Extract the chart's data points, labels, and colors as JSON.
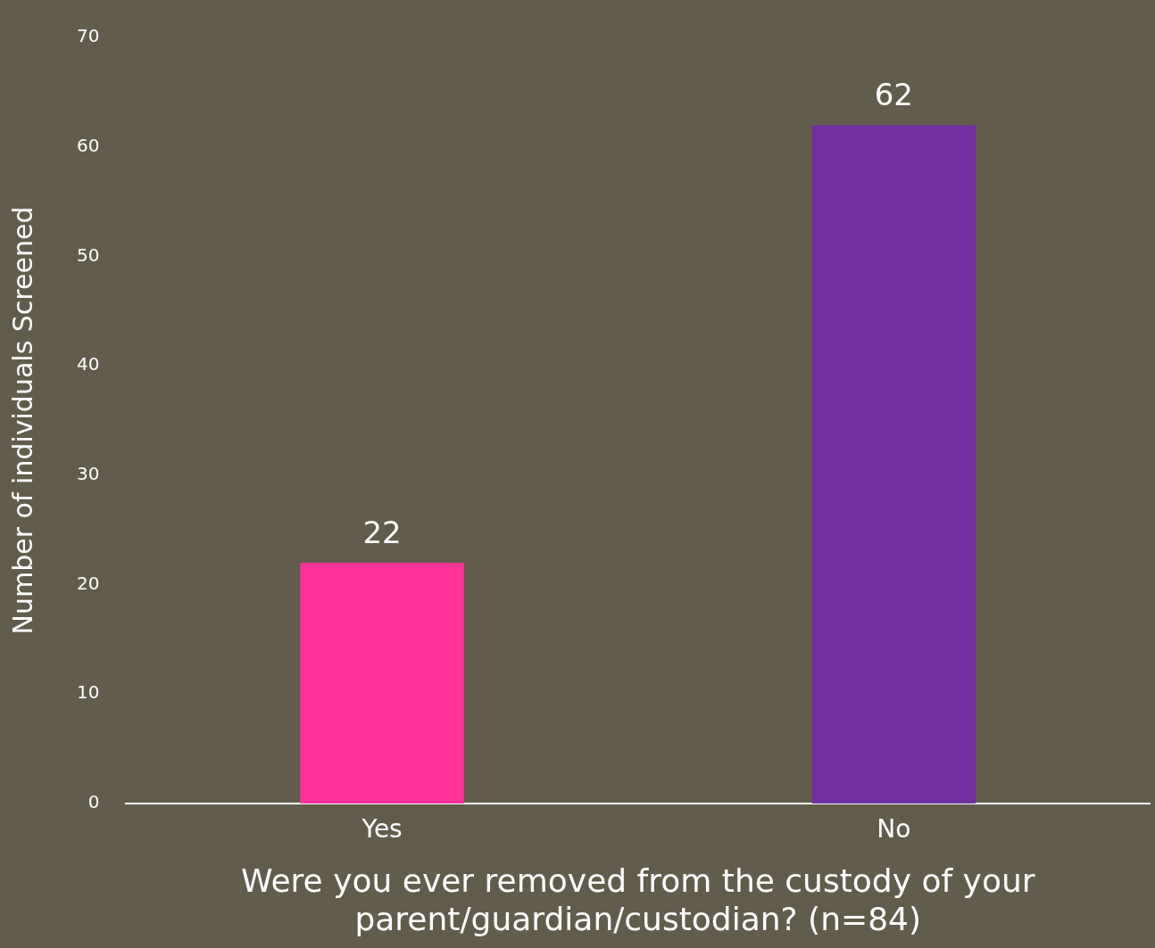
{
  "chart_data": {
    "type": "bar",
    "xlabel": "Were you ever removed from the custody of your parent/guardian/custodian? (n=84)",
    "ylabel": "Number of individuals Screened",
    "categories": [
      "Yes",
      "No"
    ],
    "values": [
      22,
      62
    ],
    "colors": [
      "#ff3399",
      "#7030a0"
    ],
    "ylim": [
      0,
      70
    ],
    "yticks": [
      0,
      10,
      20,
      30,
      40,
      50,
      60,
      70
    ],
    "grid": false,
    "legend": false,
    "data_labels": true
  }
}
